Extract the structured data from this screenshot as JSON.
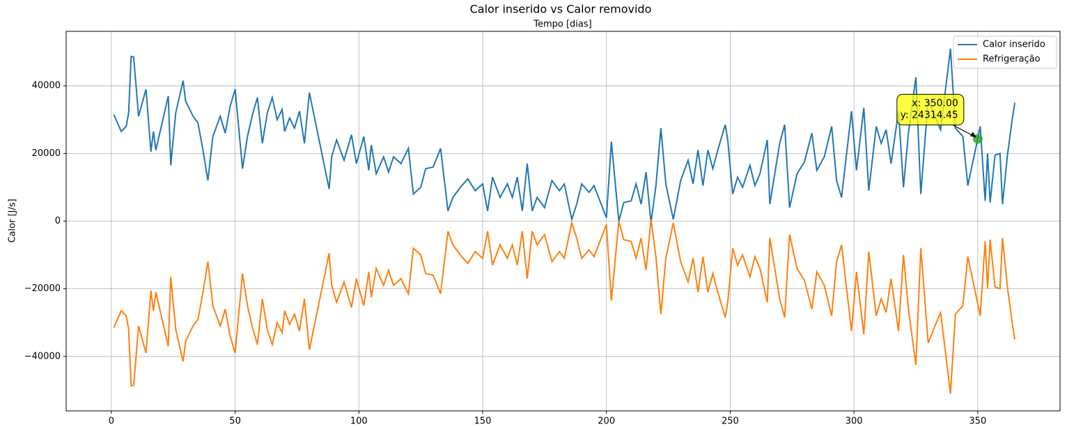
{
  "chart_data": {
    "type": "line",
    "title": "Calor inserido vs Calor removido",
    "xlabel": "Tempo [dias]",
    "ylabel": "Calor [J/s]",
    "x": [
      1,
      4,
      6,
      7,
      8,
      9,
      11,
      14,
      16,
      17,
      18,
      23,
      24,
      26,
      29,
      30,
      33,
      35,
      37,
      39,
      41,
      44,
      46,
      48,
      50,
      53,
      55,
      57,
      59,
      61,
      63,
      65,
      67,
      69,
      70,
      72,
      74,
      76,
      78,
      80,
      88,
      89,
      91,
      94,
      97,
      99,
      102,
      104,
      105,
      107,
      110,
      112,
      114,
      117,
      120,
      122,
      125,
      127,
      130,
      133,
      136,
      138,
      141,
      144,
      147,
      150,
      152,
      154,
      157,
      160,
      162,
      164,
      166,
      168,
      170,
      172,
      175,
      178,
      181,
      183,
      186,
      188,
      190,
      193,
      195,
      200,
      202,
      205,
      207,
      210,
      212,
      214,
      216,
      218,
      220,
      222,
      224,
      227,
      230,
      233,
      235,
      237,
      239,
      241,
      243,
      245,
      248,
      249,
      251,
      253,
      255,
      258,
      260,
      262,
      265,
      266,
      270,
      272,
      274,
      277,
      280,
      283,
      285,
      288,
      291,
      293,
      295,
      299,
      301,
      304,
      306,
      309,
      311,
      313,
      315,
      318,
      320,
      322,
      325,
      327,
      330,
      333,
      335,
      339,
      341,
      344,
      346,
      350,
      351,
      353,
      354,
      355,
      357,
      359,
      360,
      362,
      364,
      365
    ],
    "series": [
      {
        "name": "Calor inserido",
        "color": "#1f77b4",
        "values": [
          31500,
          26500,
          28000,
          32000,
          48700,
          48500,
          31000,
          39000,
          20500,
          26500,
          21000,
          37000,
          16500,
          32000,
          41500,
          35500,
          31000,
          29000,
          21000,
          12000,
          25000,
          31000,
          26000,
          34000,
          39000,
          15500,
          25000,
          31500,
          36500,
          23000,
          32000,
          36500,
          30000,
          33000,
          26500,
          30500,
          27500,
          32500,
          23000,
          38000,
          9500,
          19000,
          24000,
          18000,
          25500,
          17000,
          25000,
          15000,
          22500,
          14000,
          19000,
          14500,
          19000,
          17000,
          21500,
          8000,
          10000,
          15500,
          16000,
          21500,
          3000,
          7000,
          10000,
          12500,
          9000,
          11000,
          3000,
          13000,
          7000,
          11000,
          7000,
          13000,
          3000,
          17000,
          3000,
          7000,
          4000,
          12000,
          9000,
          11000,
          500,
          5000,
          11000,
          8500,
          10500,
          1000,
          23500,
          0,
          5500,
          6000,
          11000,
          5000,
          14500,
          -500,
          10500,
          27500,
          11000,
          500,
          12000,
          18000,
          11000,
          21000,
          10500,
          21000,
          15500,
          21000,
          28500,
          24000,
          8000,
          13000,
          10000,
          16500,
          10500,
          14000,
          24000,
          5000,
          23000,
          28500,
          4000,
          14000,
          17500,
          26000,
          15000,
          19000,
          28000,
          12000,
          7000,
          32500,
          15000,
          33500,
          9000,
          28000,
          23000,
          27000,
          17000,
          32500,
          10000,
          26000,
          42500,
          8000,
          36000,
          30500,
          27000,
          51000,
          27500,
          25000,
          10500,
          24314,
          28000,
          6000,
          20000,
          5500,
          19500,
          20000,
          5000,
          19500,
          30500,
          35000
        ]
      },
      {
        "name": "Refrigeração",
        "color": "#ff7f0e",
        "values": [
          -31500,
          -26500,
          -28000,
          -32000,
          -48700,
          -48500,
          -31000,
          -39000,
          -20500,
          -26500,
          -21000,
          -37000,
          -16500,
          -32000,
          -41500,
          -35500,
          -31000,
          -29000,
          -21000,
          -12000,
          -25000,
          -31000,
          -26000,
          -34000,
          -39000,
          -15500,
          -25000,
          -31500,
          -36500,
          -23000,
          -32000,
          -36500,
          -30000,
          -33000,
          -26500,
          -30500,
          -27500,
          -32500,
          -23000,
          -38000,
          -9500,
          -19000,
          -24000,
          -18000,
          -25500,
          -17000,
          -25000,
          -15000,
          -22500,
          -14000,
          -19000,
          -14500,
          -19000,
          -17000,
          -21500,
          -8000,
          -10000,
          -15500,
          -16000,
          -21500,
          -3000,
          -7000,
          -10000,
          -12500,
          -9000,
          -11000,
          -3000,
          -13000,
          -7000,
          -11000,
          -7000,
          -13000,
          -3000,
          -17000,
          -3000,
          -7000,
          -4000,
          -12000,
          -9000,
          -11000,
          -500,
          -5000,
          -11000,
          -8500,
          -10500,
          -1000,
          -23500,
          0,
          -5500,
          -6000,
          -11000,
          -5000,
          -14500,
          500,
          -10500,
          -27500,
          -11000,
          -500,
          -12000,
          -18000,
          -11000,
          -21000,
          -10500,
          -21000,
          -15500,
          -21000,
          -28500,
          -24000,
          -8000,
          -13000,
          -10000,
          -16500,
          -10500,
          -14000,
          -24000,
          -5000,
          -23000,
          -28500,
          -4000,
          -14000,
          -17500,
          -26000,
          -15000,
          -19000,
          -28000,
          -12000,
          -7000,
          -32500,
          -15000,
          -33500,
          -9000,
          -28000,
          -23000,
          -27000,
          -17000,
          -32500,
          -10000,
          -26000,
          -42500,
          -8000,
          -36000,
          -30500,
          -27000,
          -51000,
          -27500,
          -25000,
          -10500,
          -24314,
          -28000,
          -6000,
          -20000,
          -5500,
          -19500,
          -20000,
          -5000,
          -19500,
          -30500,
          -35000
        ]
      }
    ],
    "xlim": [
      -18.25,
      383.25
    ],
    "ylim": [
      -56100,
      56100
    ],
    "xticks": [
      0,
      50,
      100,
      150,
      200,
      250,
      300,
      350
    ],
    "yticks": [
      {
        "value": -40000,
        "label": "−40000"
      },
      {
        "value": -20000,
        "label": "−20000"
      },
      0,
      20000,
      40000
    ],
    "grid": true,
    "legend": "upper right",
    "annotation": {
      "x": 350,
      "y": 24314.45,
      "text": [
        "x: 350.00",
        "y: 24314.45"
      ]
    }
  }
}
